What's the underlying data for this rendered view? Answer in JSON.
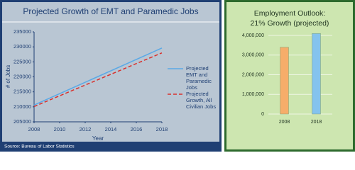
{
  "chart_data": [
    {
      "type": "line",
      "title": "Projected Growth of EMT and Paramedic Jobs",
      "x_label": "Year",
      "y_label": "# of Jobs",
      "source": "Source: Bureau of Labor Statistics",
      "x": [
        2008,
        2018
      ],
      "series": [
        {
          "name": "Projected EMT and Paramedic Jobs",
          "color": "#5aa9e6",
          "dashed": false,
          "values": [
            210600,
            229600
          ]
        },
        {
          "name": "Projected Growth, All Civilian Jobs",
          "color": "#d9302c",
          "dashed": true,
          "values": [
            210100,
            228000
          ]
        }
      ],
      "xlim": [
        2008,
        2018
      ],
      "xticks": [
        2008,
        2010,
        2012,
        2014,
        2016,
        2018
      ],
      "ylim": [
        205000,
        235000
      ],
      "yticks": [
        205000,
        210000,
        215000,
        220000,
        225000,
        230000,
        235000
      ],
      "grid": false
    },
    {
      "type": "bar",
      "title": "Employment Outlook: 21% Growth (projected)",
      "categories": [
        "2008",
        "2018"
      ],
      "values": [
        3400000,
        4100000
      ],
      "colors": [
        "#f6ad6a",
        "#84c3ee"
      ],
      "ylim": [
        0,
        4200000
      ],
      "yticks": [
        0,
        {
          "value": 1000000,
          "label": "1,000,000"
        },
        {
          "value": 2000000,
          "label": "2,000,000"
        },
        {
          "value": 3000000,
          "label": "3,000,000"
        },
        {
          "value": 4000000,
          "label": "4,000,000"
        }
      ],
      "grid": true
    }
  ]
}
